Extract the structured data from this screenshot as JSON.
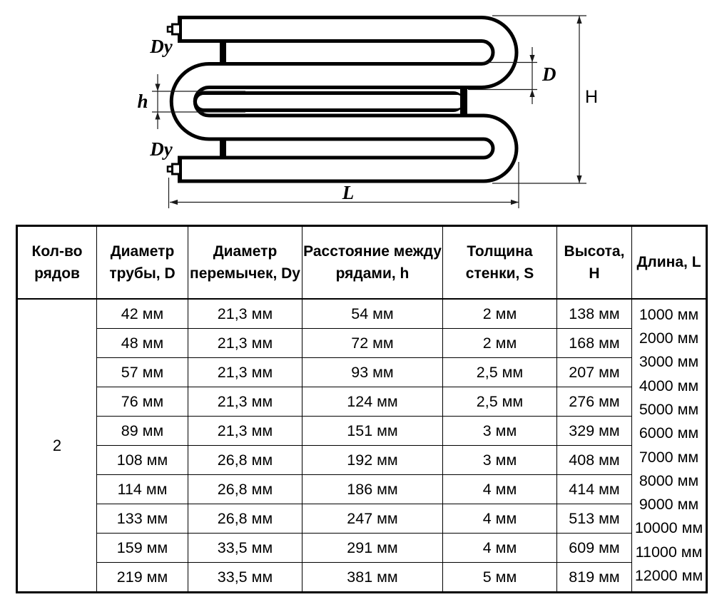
{
  "page": {
    "background": "#ffffff",
    "ink": "#000000"
  },
  "diagram": {
    "type": "two-row-serpentine-pipe-register-drawing",
    "labels": {
      "dy_top": "Dy",
      "dy_bottom": "Dy",
      "h": "h",
      "d": "D",
      "height": "H",
      "length": "L"
    }
  },
  "table": {
    "headers": [
      "Кол-во\nрядов",
      "Диаметр\nтрубы, D",
      "Диаметр\nперемычек, Dy",
      "Расстояние между\nрядами, h",
      "Толщина\nстенки, S",
      "Высота, Н",
      "Длина, L"
    ],
    "row_count": "2",
    "rows": [
      {
        "d": "42 мм",
        "dy": "21,3 мм",
        "h": "54 мм",
        "s": "2 мм",
        "height": "138 мм"
      },
      {
        "d": "48 мм",
        "dy": "21,3 мм",
        "h": "72 мм",
        "s": "2 мм",
        "height": "168 мм"
      },
      {
        "d": "57 мм",
        "dy": "21,3 мм",
        "h": "93 мм",
        "s": "2,5 мм",
        "height": "207 мм"
      },
      {
        "d": "76 мм",
        "dy": "21,3 мм",
        "h": "124 мм",
        "s": "2,5 мм",
        "height": "276 мм"
      },
      {
        "d": "89 мм",
        "dy": "21,3 мм",
        "h": "151 мм",
        "s": "3 мм",
        "height": "329 мм"
      },
      {
        "d": "108 мм",
        "dy": "26,8 мм",
        "h": "192 мм",
        "s": "3 мм",
        "height": "408 мм"
      },
      {
        "d": "114 мм",
        "dy": "26,8 мм",
        "h": "186 мм",
        "s": "4 мм",
        "height": "414 мм"
      },
      {
        "d": "133 мм",
        "dy": "26,8 мм",
        "h": "247 мм",
        "s": "4 мм",
        "height": "513 мм"
      },
      {
        "d": "159 мм",
        "dy": "33,5 мм",
        "h": "291 мм",
        "s": "4 мм",
        "height": "609 мм"
      },
      {
        "d": "219 мм",
        "dy": "33,5 мм",
        "h": "381 мм",
        "s": "5 мм",
        "height": "819 мм"
      }
    ],
    "lengths": [
      "1000 мм",
      "2000 мм",
      "3000 мм",
      "4000 мм",
      "5000 мм",
      "6000 мм",
      "7000 мм",
      "8000 мм",
      "9000 мм",
      "10000 мм",
      "11000 мм",
      "12000 мм"
    ]
  }
}
